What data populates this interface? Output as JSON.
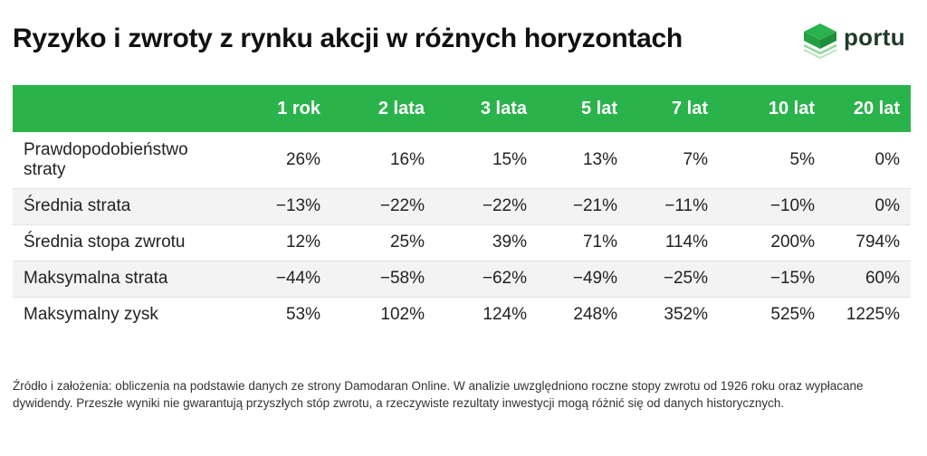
{
  "title": "Ryzyko i zwroty z rynku akcji w różnych horyzontach",
  "brand": {
    "name": "portu",
    "colors": {
      "green": "#2bb34b",
      "dark_green": "#1f3b2a",
      "light_green": "#8fd89a"
    }
  },
  "chart_data": {
    "type": "table",
    "columns": [
      "",
      "1 rok",
      "2 lata",
      "3 lata",
      "5 lat",
      "7 lat",
      "10 lat",
      "20 lat"
    ],
    "rows": [
      {
        "label": "Prawdopodobieństwo straty",
        "values": [
          "26%",
          "16%",
          "15%",
          "13%",
          "7%",
          "5%",
          "0%"
        ]
      },
      {
        "label": "Średnia strata",
        "values": [
          "−13%",
          "−22%",
          "−22%",
          "−21%",
          "−11%",
          "−10%",
          "0%"
        ]
      },
      {
        "label": "Średnia stopa zwrotu",
        "values": [
          "12%",
          "25%",
          "39%",
          "71%",
          "114%",
          "200%",
          "794%"
        ]
      },
      {
        "label": "Maksymalna strata",
        "values": [
          "−44%",
          "−58%",
          "−62%",
          "−49%",
          "−25%",
          "−15%",
          "60%"
        ]
      },
      {
        "label": "Maksymalny zysk",
        "values": [
          "53%",
          "102%",
          "124%",
          "248%",
          "352%",
          "525%",
          "1225%"
        ]
      }
    ],
    "header_color": "#2bb34b",
    "stripe_color": "#f3f3f3"
  },
  "footnote": "Źródło i założenia: obliczenia na podstawie danych ze strony Damodaran Online. W analizie uwzględniono roczne stopy zwrotu od 1926 roku oraz wypłacane dywidendy. Przeszłe wyniki nie gwarantują przyszłych stóp zwrotu, a rzeczywiste rezultaty inwestycji mogą różnić się od danych historycznych."
}
